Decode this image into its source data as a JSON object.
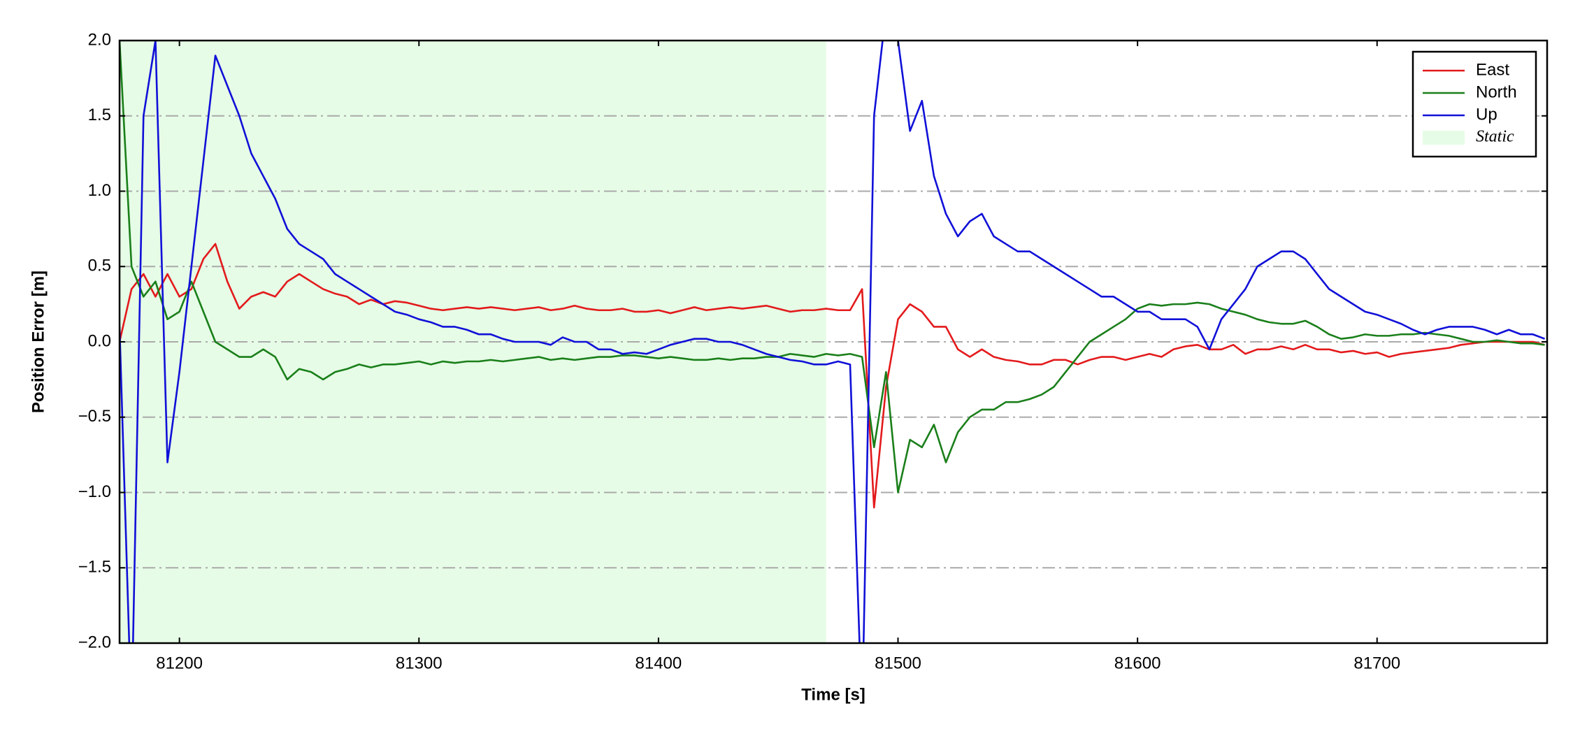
{
  "chart_data": {
    "type": "line",
    "xlabel": "Time [s]",
    "ylabel": "Position Error [m]",
    "xlim": [
      81175,
      81771
    ],
    "ylim": [
      -2,
      2
    ],
    "xticks": [
      81200,
      81300,
      81400,
      81500,
      81600,
      81700
    ],
    "yticks": [
      {
        "value": -2,
        "label": "−2.0"
      },
      {
        "value": -1.5,
        "label": "−1.5"
      },
      {
        "value": -1,
        "label": "−1.0"
      },
      {
        "value": -0.5,
        "label": "−0.5"
      },
      {
        "value": 0,
        "label": "0.0"
      },
      {
        "value": 0.5,
        "label": "0.5"
      },
      {
        "value": 1,
        "label": "1.0"
      },
      {
        "value": 1.5,
        "label": "1.5"
      },
      {
        "value": 2,
        "label": "2.0"
      }
    ],
    "grid": true,
    "legend": "upper right",
    "shaded_regions": [
      {
        "name": "Static",
        "color": "#e6fce6",
        "x": [
          81175,
          81470
        ]
      }
    ],
    "x": [
      81175,
      81180,
      81185,
      81190,
      81195,
      81200,
      81205,
      81210,
      81215,
      81220,
      81225,
      81230,
      81235,
      81240,
      81245,
      81250,
      81255,
      81260,
      81265,
      81270,
      81275,
      81280,
      81285,
      81290,
      81295,
      81300,
      81305,
      81310,
      81315,
      81320,
      81325,
      81330,
      81335,
      81340,
      81345,
      81350,
      81355,
      81360,
      81365,
      81370,
      81375,
      81380,
      81385,
      81390,
      81395,
      81400,
      81405,
      81410,
      81415,
      81420,
      81425,
      81430,
      81435,
      81440,
      81445,
      81450,
      81455,
      81460,
      81465,
      81470,
      81475,
      81480,
      81485,
      81490,
      81495,
      81500,
      81505,
      81510,
      81515,
      81520,
      81525,
      81530,
      81535,
      81540,
      81545,
      81550,
      81555,
      81560,
      81565,
      81570,
      81575,
      81580,
      81585,
      81590,
      81595,
      81600,
      81605,
      81610,
      81615,
      81620,
      81625,
      81630,
      81635,
      81640,
      81645,
      81650,
      81655,
      81660,
      81665,
      81670,
      81675,
      81680,
      81685,
      81690,
      81695,
      81700,
      81705,
      81710,
      81715,
      81720,
      81725,
      81730,
      81735,
      81740,
      81745,
      81750,
      81755,
      81760,
      81765,
      81770
    ],
    "series": [
      {
        "name": "East",
        "color": "#e31a1c",
        "values": [
          0.0,
          0.35,
          0.45,
          0.3,
          0.45,
          0.3,
          0.35,
          0.55,
          0.65,
          0.4,
          0.22,
          0.3,
          0.33,
          0.3,
          0.4,
          0.45,
          0.4,
          0.35,
          0.32,
          0.3,
          0.25,
          0.28,
          0.25,
          0.27,
          0.26,
          0.24,
          0.22,
          0.21,
          0.22,
          0.23,
          0.22,
          0.23,
          0.22,
          0.21,
          0.22,
          0.23,
          0.21,
          0.22,
          0.24,
          0.22,
          0.21,
          0.21,
          0.22,
          0.2,
          0.2,
          0.21,
          0.19,
          0.21,
          0.23,
          0.21,
          0.22,
          0.23,
          0.22,
          0.23,
          0.24,
          0.22,
          0.2,
          0.21,
          0.21,
          0.22,
          0.21,
          0.21,
          0.35,
          -1.1,
          -0.3,
          0.15,
          0.25,
          0.2,
          0.1,
          0.1,
          -0.05,
          -0.1,
          -0.05,
          -0.1,
          -0.12,
          -0.13,
          -0.15,
          -0.15,
          -0.12,
          -0.12,
          -0.15,
          -0.12,
          -0.1,
          -0.1,
          -0.12,
          -0.1,
          -0.08,
          -0.1,
          -0.05,
          -0.03,
          -0.02,
          -0.05,
          -0.05,
          -0.02,
          -0.08,
          -0.05,
          -0.05,
          -0.03,
          -0.05,
          -0.02,
          -0.05,
          -0.05,
          -0.07,
          -0.06,
          -0.08,
          -0.07,
          -0.1,
          -0.08,
          -0.07,
          -0.06,
          -0.05,
          -0.04,
          -0.02,
          -0.01,
          0.0,
          0.0,
          0.0,
          0.0,
          0.0,
          -0.02
        ]
      },
      {
        "name": "North",
        "color": "#1a7f1a",
        "values": [
          2.0,
          0.5,
          0.3,
          0.4,
          0.15,
          0.2,
          0.4,
          0.2,
          0.0,
          -0.05,
          -0.1,
          -0.1,
          -0.05,
          -0.1,
          -0.25,
          -0.18,
          -0.2,
          -0.25,
          -0.2,
          -0.18,
          -0.15,
          -0.17,
          -0.15,
          -0.15,
          -0.14,
          -0.13,
          -0.15,
          -0.13,
          -0.14,
          -0.13,
          -0.13,
          -0.12,
          -0.13,
          -0.12,
          -0.11,
          -0.1,
          -0.12,
          -0.11,
          -0.12,
          -0.11,
          -0.1,
          -0.1,
          -0.09,
          -0.09,
          -0.1,
          -0.11,
          -0.1,
          -0.11,
          -0.12,
          -0.12,
          -0.11,
          -0.12,
          -0.11,
          -0.11,
          -0.1,
          -0.1,
          -0.08,
          -0.09,
          -0.1,
          -0.08,
          -0.09,
          -0.08,
          -0.1,
          -0.7,
          -0.2,
          -1.0,
          -0.65,
          -0.7,
          -0.55,
          -0.8,
          -0.6,
          -0.5,
          -0.45,
          -0.45,
          -0.4,
          -0.4,
          -0.38,
          -0.35,
          -0.3,
          -0.2,
          -0.1,
          0.0,
          0.05,
          0.1,
          0.15,
          0.22,
          0.25,
          0.24,
          0.25,
          0.25,
          0.26,
          0.25,
          0.22,
          0.2,
          0.18,
          0.15,
          0.13,
          0.12,
          0.12,
          0.14,
          0.1,
          0.05,
          0.02,
          0.03,
          0.05,
          0.04,
          0.04,
          0.05,
          0.05,
          0.06,
          0.05,
          0.04,
          0.02,
          0.0,
          0.0,
          0.01,
          0.0,
          -0.01,
          -0.01,
          -0.02
        ]
      },
      {
        "name": "Up",
        "color": "#1010d8",
        "values": [
          0.1,
          -2.5,
          1.5,
          2.0,
          -0.8,
          -0.2,
          0.5,
          1.2,
          1.9,
          1.7,
          1.5,
          1.25,
          1.1,
          0.95,
          0.75,
          0.65,
          0.6,
          0.55,
          0.45,
          0.4,
          0.35,
          0.3,
          0.25,
          0.2,
          0.18,
          0.15,
          0.13,
          0.1,
          0.1,
          0.08,
          0.05,
          0.05,
          0.02,
          0.0,
          0.0,
          0.0,
          -0.02,
          0.03,
          0.0,
          0.0,
          -0.05,
          -0.05,
          -0.08,
          -0.07,
          -0.08,
          -0.05,
          -0.02,
          0.0,
          0.02,
          0.02,
          0.0,
          0.0,
          -0.02,
          -0.05,
          -0.08,
          -0.1,
          -0.12,
          -0.13,
          -0.15,
          -0.15,
          -0.13,
          -0.15,
          -2.5,
          1.5,
          2.2,
          2.0,
          1.4,
          1.6,
          1.1,
          0.85,
          0.7,
          0.8,
          0.85,
          0.7,
          0.65,
          0.6,
          0.6,
          0.55,
          0.5,
          0.45,
          0.4,
          0.35,
          0.3,
          0.3,
          0.25,
          0.2,
          0.2,
          0.15,
          0.15,
          0.15,
          0.1,
          -0.05,
          0.15,
          0.25,
          0.35,
          0.5,
          0.55,
          0.6,
          0.6,
          0.55,
          0.45,
          0.35,
          0.3,
          0.25,
          0.2,
          0.18,
          0.15,
          0.12,
          0.08,
          0.05,
          0.08,
          0.1,
          0.1,
          0.1,
          0.08,
          0.05,
          0.08,
          0.05,
          0.05,
          0.02
        ]
      }
    ]
  }
}
